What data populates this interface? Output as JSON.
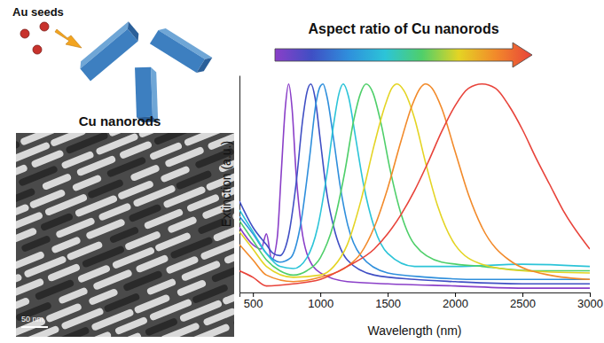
{
  "chart_data": {
    "type": "line",
    "xlabel": "Wavelength (nm)",
    "ylabel": "Extinction (a.u.)",
    "xlim": [
      400,
      3000
    ],
    "xticks": [
      500,
      1000,
      1500,
      2000,
      2500,
      3000
    ],
    "ylim": [
      0,
      1
    ],
    "tick_labels": "x",
    "grid": false,
    "series": [
      {
        "color": "#8a3fc8",
        "x": [
          400,
          500,
          560,
          600,
          640,
          680,
          710,
          740,
          765,
          790,
          820,
          860,
          900,
          1000,
          1200,
          1500,
          2000,
          2500,
          3000
        ],
        "values": [
          0.3,
          0.22,
          0.2,
          0.27,
          0.15,
          0.25,
          0.55,
          0.85,
          0.96,
          0.85,
          0.55,
          0.3,
          0.18,
          0.09,
          0.05,
          0.04,
          0.03,
          0.02,
          0.02
        ]
      },
      {
        "color": "#3f4fc4",
        "x": [
          400,
          500,
          600,
          650,
          700,
          760,
          820,
          870,
          900,
          930,
          960,
          1000,
          1050,
          1100,
          1200,
          1400,
          1700,
          2000,
          2500,
          3000
        ],
        "values": [
          0.42,
          0.3,
          0.22,
          0.18,
          0.17,
          0.25,
          0.5,
          0.8,
          0.92,
          0.96,
          0.9,
          0.7,
          0.45,
          0.3,
          0.15,
          0.08,
          0.06,
          0.05,
          0.04,
          0.04
        ]
      },
      {
        "color": "#2f8fdc",
        "x": [
          400,
          500,
          600,
          700,
          780,
          850,
          920,
          970,
          1000,
          1020,
          1050,
          1100,
          1150,
          1200,
          1300,
          1500,
          1800,
          2200,
          2600,
          3000
        ],
        "values": [
          0.35,
          0.27,
          0.18,
          0.14,
          0.16,
          0.3,
          0.62,
          0.88,
          0.95,
          0.96,
          0.9,
          0.7,
          0.48,
          0.32,
          0.17,
          0.09,
          0.07,
          0.06,
          0.06,
          0.06
        ]
      },
      {
        "color": "#2cc4d8",
        "x": [
          400,
          500,
          600,
          700,
          800,
          900,
          980,
          1050,
          1100,
          1140,
          1170,
          1210,
          1260,
          1320,
          1400,
          1500,
          1700,
          2000,
          2500,
          3000
        ],
        "values": [
          0.38,
          0.28,
          0.18,
          0.12,
          0.11,
          0.16,
          0.3,
          0.55,
          0.78,
          0.92,
          0.96,
          0.9,
          0.72,
          0.5,
          0.3,
          0.18,
          0.12,
          0.12,
          0.13,
          0.12
        ]
      },
      {
        "color": "#4fcf6a",
        "x": [
          400,
          500,
          600,
          700,
          800,
          900,
          1000,
          1100,
          1180,
          1250,
          1300,
          1340,
          1390,
          1450,
          1520,
          1600,
          1700,
          1900,
          2200,
          2600,
          3000
        ],
        "values": [
          0.33,
          0.24,
          0.15,
          0.1,
          0.08,
          0.1,
          0.16,
          0.32,
          0.55,
          0.8,
          0.92,
          0.96,
          0.92,
          0.78,
          0.56,
          0.36,
          0.22,
          0.14,
          0.12,
          0.1,
          0.1
        ]
      },
      {
        "color": "#e4d424",
        "x": [
          400,
          500,
          600,
          800,
          1000,
          1100,
          1200,
          1300,
          1400,
          1480,
          1530,
          1570,
          1620,
          1700,
          1780,
          1870,
          2000,
          2200,
          2500,
          3000
        ],
        "values": [
          0.28,
          0.2,
          0.12,
          0.07,
          0.08,
          0.12,
          0.22,
          0.42,
          0.68,
          0.86,
          0.94,
          0.96,
          0.93,
          0.8,
          0.6,
          0.4,
          0.22,
          0.13,
          0.1,
          0.09
        ]
      },
      {
        "color": "#f28a2a",
        "x": [
          400,
          500,
          600,
          800,
          1000,
          1200,
          1300,
          1400,
          1500,
          1600,
          1680,
          1740,
          1780,
          1830,
          1900,
          2000,
          2100,
          2200,
          2400,
          2700,
          3000
        ],
        "values": [
          0.22,
          0.15,
          0.08,
          0.05,
          0.07,
          0.12,
          0.18,
          0.3,
          0.48,
          0.7,
          0.86,
          0.94,
          0.96,
          0.94,
          0.85,
          0.65,
          0.45,
          0.3,
          0.15,
          0.08,
          0.06
        ]
      },
      {
        "color": "#e8433a",
        "x": [
          400,
          500,
          600,
          800,
          1000,
          1200,
          1400,
          1500,
          1600,
          1700,
          1800,
          1900,
          2000,
          2100,
          2200,
          2300,
          2400,
          2500,
          2600,
          2700,
          2800,
          3000
        ],
        "values": [
          0.1,
          0.07,
          0.03,
          0.04,
          0.06,
          0.12,
          0.2,
          0.27,
          0.36,
          0.47,
          0.6,
          0.74,
          0.86,
          0.94,
          0.96,
          0.94,
          0.86,
          0.75,
          0.62,
          0.5,
          0.38,
          0.2
        ]
      }
    ]
  },
  "figure": {
    "seed_label": "Au seeds",
    "image_title": "Cu nanorods",
    "scale_bar": "50 nm",
    "arrow_label": "Aspect ratio of Cu nanorods"
  }
}
